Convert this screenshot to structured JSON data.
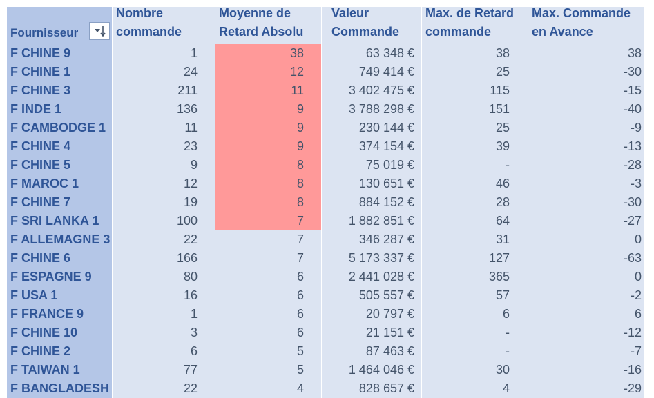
{
  "table": {
    "headers": {
      "supplier": "Fournisseur",
      "order_count": "Nombre commande",
      "avg_delay": "Moyenne de Retard Absolu",
      "order_value": "Valeur Commande",
      "max_delay": "Max. de Retard commande",
      "max_early": "Max. Commande en Avance"
    },
    "sort_icon": "sort-descending-icon",
    "highlight_color": "#ff9999",
    "rows": [
      {
        "supplier": "F CHINE 9",
        "order_count": "1",
        "avg_delay": "38",
        "order_value": "63 348 €",
        "max_delay": "38",
        "max_early": "38",
        "highlight": true
      },
      {
        "supplier": "F CHINE 1",
        "order_count": "24",
        "avg_delay": "12",
        "order_value": "749 414 €",
        "max_delay": "25",
        "max_early": "-30",
        "highlight": true
      },
      {
        "supplier": "F CHINE 3",
        "order_count": "211",
        "avg_delay": "11",
        "order_value": "3 402 475 €",
        "max_delay": "115",
        "max_early": "-15",
        "highlight": true
      },
      {
        "supplier": "F INDE 1",
        "order_count": "136",
        "avg_delay": "9",
        "order_value": "3 788 298 €",
        "max_delay": "151",
        "max_early": "-40",
        "highlight": true
      },
      {
        "supplier": "F CAMBODGE 1",
        "order_count": "11",
        "avg_delay": "9",
        "order_value": "230 144 €",
        "max_delay": "25",
        "max_early": "-9",
        "highlight": true
      },
      {
        "supplier": "F CHINE 4",
        "order_count": "23",
        "avg_delay": "9",
        "order_value": "374 154 €",
        "max_delay": "39",
        "max_early": "-13",
        "highlight": true
      },
      {
        "supplier": "F CHINE 5",
        "order_count": "9",
        "avg_delay": "8",
        "order_value": "75 019 €",
        "max_delay": "-",
        "max_early": "-28",
        "highlight": true
      },
      {
        "supplier": "F MAROC 1",
        "order_count": "12",
        "avg_delay": "8",
        "order_value": "130 651 €",
        "max_delay": "46",
        "max_early": "-3",
        "highlight": true
      },
      {
        "supplier": "F CHINE 7",
        "order_count": "19",
        "avg_delay": "8",
        "order_value": "884 152 €",
        "max_delay": "28",
        "max_early": "-30",
        "highlight": true
      },
      {
        "supplier": "F SRI LANKA 1",
        "order_count": "100",
        "avg_delay": "7",
        "order_value": "1 882 851 €",
        "max_delay": "64",
        "max_early": "-27",
        "highlight": true
      },
      {
        "supplier": "F ALLEMAGNE 3",
        "order_count": "22",
        "avg_delay": "7",
        "order_value": "346 287 €",
        "max_delay": "31",
        "max_early": "0",
        "highlight": false
      },
      {
        "supplier": "F CHINE 6",
        "order_count": "166",
        "avg_delay": "7",
        "order_value": "5 173 337 €",
        "max_delay": "127",
        "max_early": "-63",
        "highlight": false
      },
      {
        "supplier": "F ESPAGNE 9",
        "order_count": "80",
        "avg_delay": "6",
        "order_value": "2 441 028 €",
        "max_delay": "365",
        "max_early": "0",
        "highlight": false
      },
      {
        "supplier": "F USA 1",
        "order_count": "16",
        "avg_delay": "6",
        "order_value": "505 557 €",
        "max_delay": "57",
        "max_early": "-2",
        "highlight": false
      },
      {
        "supplier": "F FRANCE 9",
        "order_count": "1",
        "avg_delay": "6",
        "order_value": "20 797 €",
        "max_delay": "6",
        "max_early": "6",
        "highlight": false
      },
      {
        "supplier": "F CHINE 10",
        "order_count": "3",
        "avg_delay": "6",
        "order_value": "21 151 €",
        "max_delay": "-",
        "max_early": "-12",
        "highlight": false
      },
      {
        "supplier": "F CHINE 2",
        "order_count": "6",
        "avg_delay": "5",
        "order_value": "87 463 €",
        "max_delay": "-",
        "max_early": "-7",
        "highlight": false
      },
      {
        "supplier": "F TAIWAN 1",
        "order_count": "77",
        "avg_delay": "5",
        "order_value": "1 464 046 €",
        "max_delay": "30",
        "max_early": "-16",
        "highlight": false
      },
      {
        "supplier": "F BANGLADESH 1",
        "order_count": "22",
        "avg_delay": "4",
        "order_value": "828 657 €",
        "max_delay": "4",
        "max_early": "-29",
        "highlight": false
      }
    ]
  }
}
